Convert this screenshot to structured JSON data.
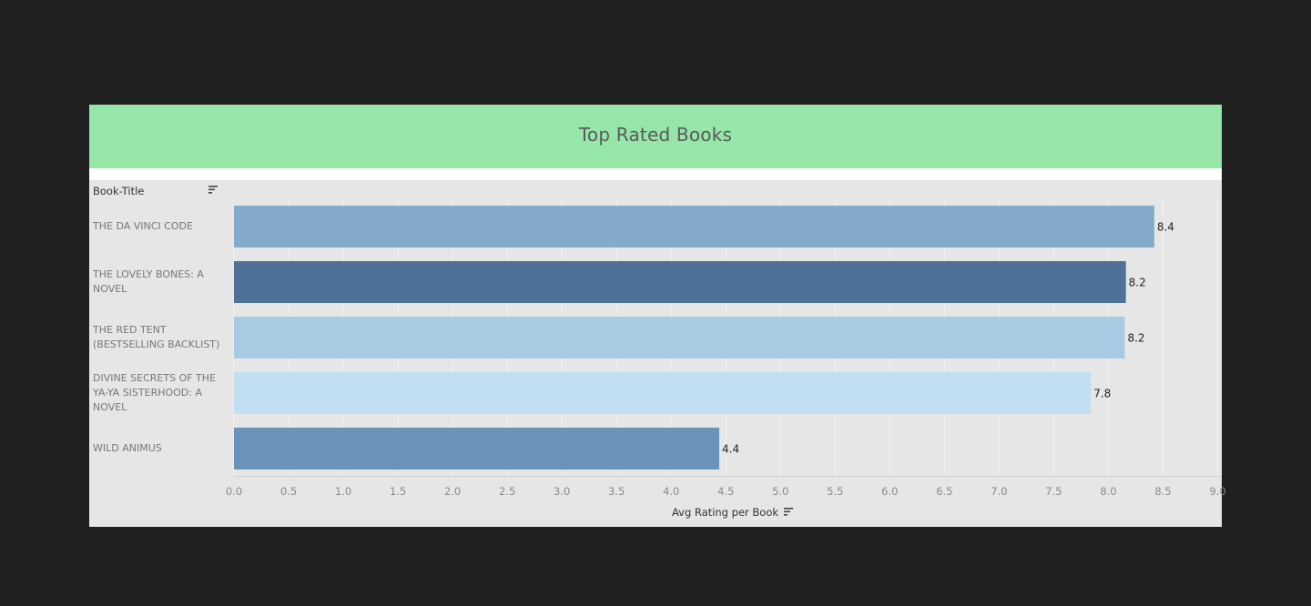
{
  "title": "Top Rated Books",
  "row_header": "Book-Title",
  "x_axis_title": "Avg Rating per Book",
  "colors": {
    "page_background": "#202020",
    "panel_background": "#e6e6e6",
    "title_background": "#95e6a8"
  },
  "icons": {
    "row_sort": "sort-descending-icon",
    "axis_sort": "sort-descending-icon"
  },
  "chart_data": {
    "type": "bar",
    "orientation": "horizontal",
    "title": "Top Rated Books",
    "ylabel": "Book-Title",
    "xlabel": "Avg Rating per Book",
    "categories": [
      "THE DA VINCI CODE",
      "THE LOVELY BONES: A NOVEL",
      "THE RED TENT (BESTSELLING BACKLIST)",
      "DIVINE SECRETS OF THE YA-YA SISTERHOOD: A NOVEL",
      "WILD ANIMUS"
    ],
    "category_lines": [
      [
        "THE DA VINCI CODE"
      ],
      [
        "THE LOVELY BONES: A",
        "NOVEL"
      ],
      [
        "THE RED TENT",
        "(BESTSELLING BACKLIST)"
      ],
      [
        "DIVINE SECRETS OF THE",
        "YA-YA SISTERHOOD: A",
        "NOVEL"
      ],
      [
        "WILD ANIMUS"
      ]
    ],
    "values": [
      8.42,
      8.16,
      8.15,
      7.84,
      4.44
    ],
    "data_labels": [
      "8.4",
      "8.2",
      "8.2",
      "7.8",
      "4.4"
    ],
    "bar_colors": [
      "#84aacb",
      "#4e7297",
      "#a8cae2",
      "#c1dff0",
      "#6b93b9"
    ],
    "xlim": [
      0,
      9
    ],
    "x_ticks": [
      "0.0",
      "0.5",
      "1.0",
      "1.5",
      "2.0",
      "2.5",
      "3.0",
      "3.5",
      "4.0",
      "4.5",
      "5.0",
      "5.5",
      "6.0",
      "6.5",
      "7.0",
      "7.5",
      "8.0",
      "8.5",
      "9.0"
    ],
    "grid": true,
    "legend": "none"
  }
}
